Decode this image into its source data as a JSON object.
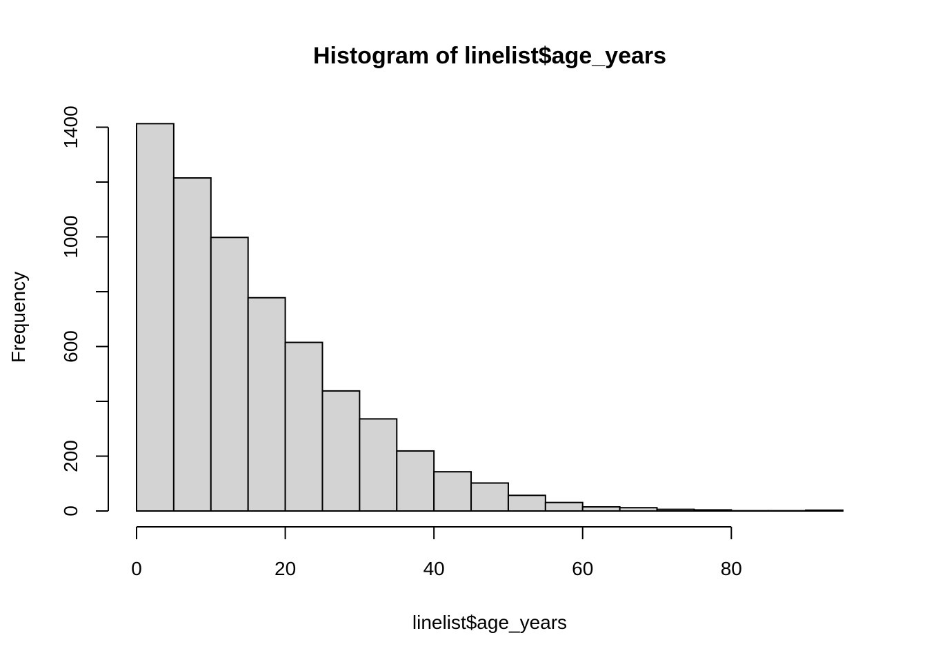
{
  "chart_data": {
    "type": "bar",
    "title": "Histogram of linelist$age_years",
    "xlabel": "linelist$age_years",
    "ylabel": "Frequency",
    "bin_edges": [
      0,
      5,
      10,
      15,
      20,
      25,
      30,
      35,
      40,
      45,
      50,
      55,
      60,
      65,
      70,
      75,
      80,
      85,
      90,
      95
    ],
    "values": [
      1413,
      1215,
      998,
      778,
      615,
      438,
      336,
      219,
      143,
      102,
      57,
      31,
      15,
      12,
      6,
      4,
      1,
      1,
      3
    ],
    "xlim": [
      0,
      95
    ],
    "ylim": [
      0,
      1450
    ],
    "x_ticks": [
      0,
      20,
      40,
      60,
      80
    ],
    "y_ticks": [
      0,
      200,
      400,
      600,
      800,
      1000,
      1200,
      1400
    ],
    "y_tick_labels": [
      "0",
      "200",
      "",
      "600",
      "",
      "1000",
      "",
      "1400"
    ],
    "grid": false,
    "bar_fill": "#d3d3d3",
    "bar_stroke": "#000000"
  }
}
